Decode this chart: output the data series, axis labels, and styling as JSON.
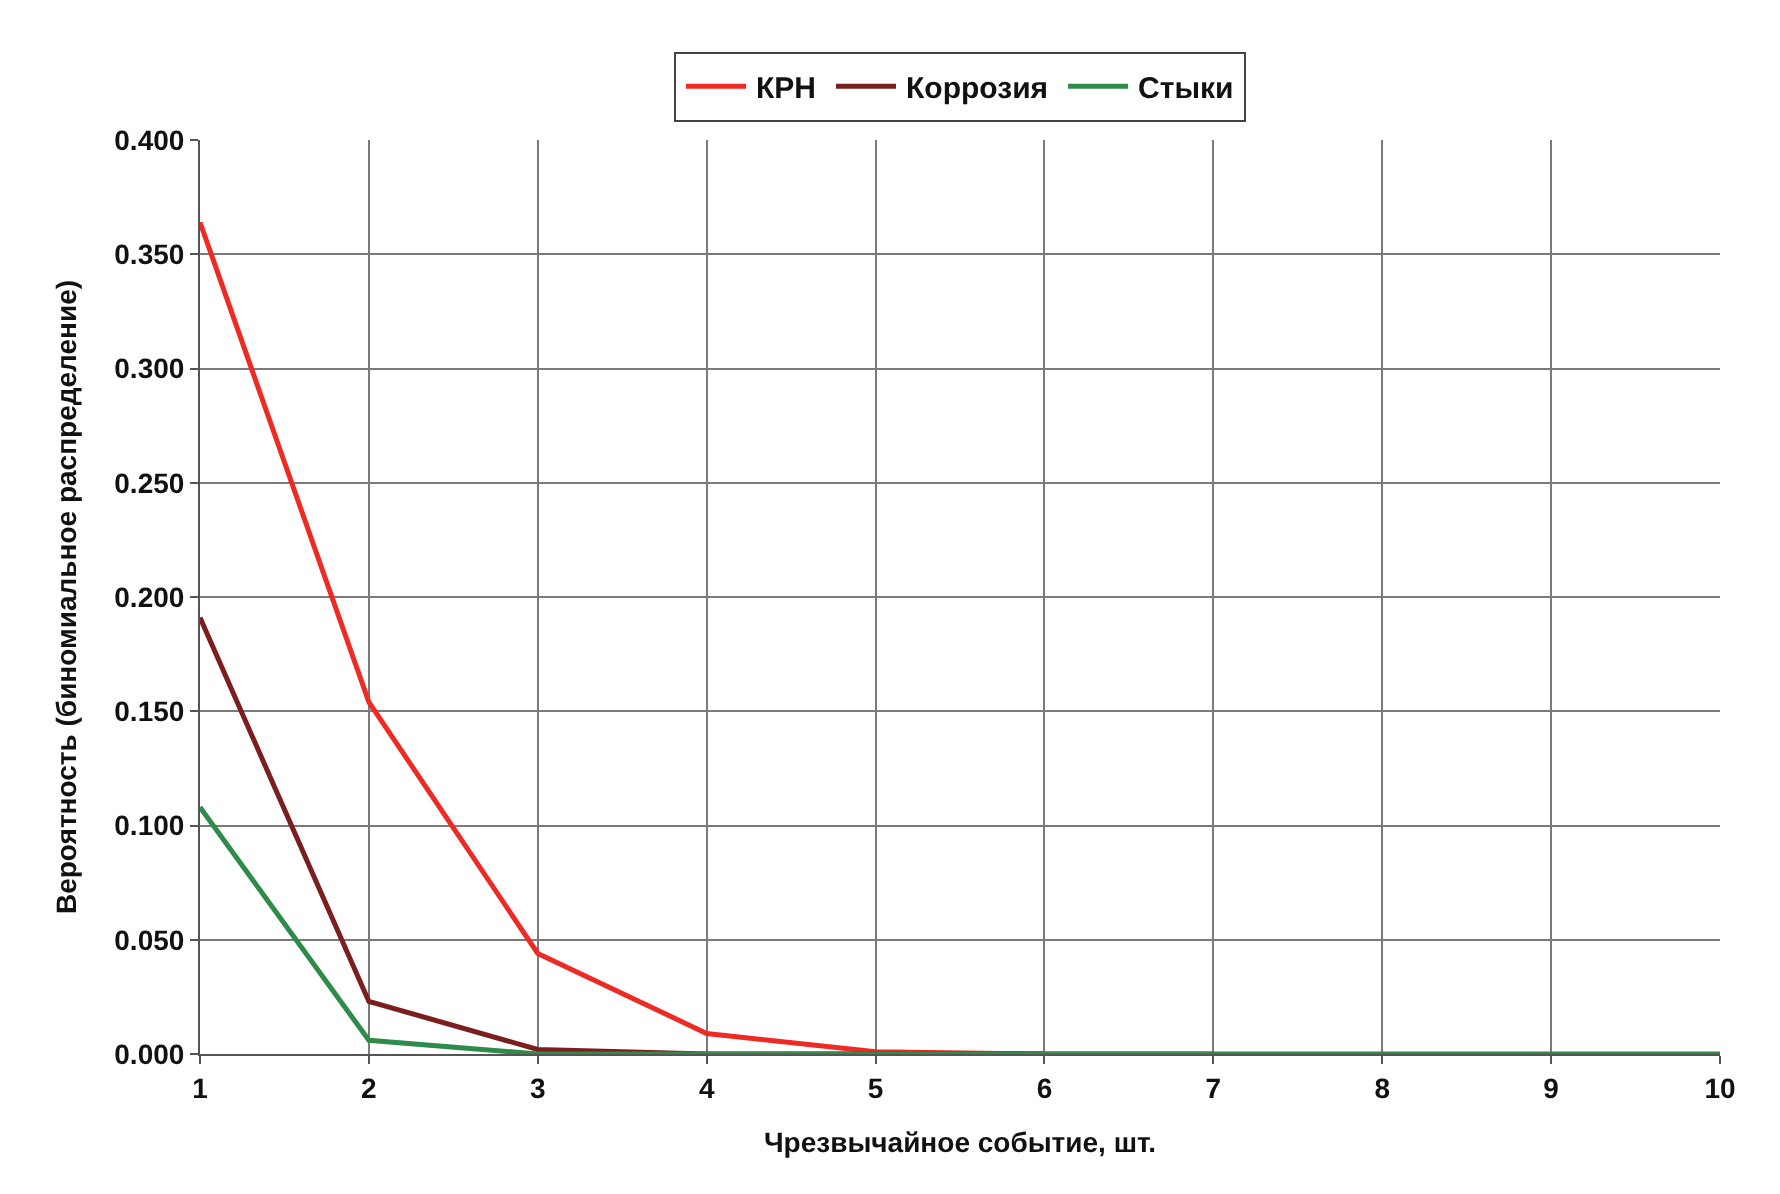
{
  "chart_data": {
    "type": "line",
    "xlabel": "Чрезвычайное событие, шт.",
    "ylabel": "Вероятность (биномиальное распределение)",
    "x": [
      1,
      2,
      3,
      4,
      5,
      6,
      7,
      8,
      9,
      10
    ],
    "series": [
      {
        "name": "КРН",
        "color": "#ee2a24",
        "values": [
          0.364,
          0.154,
          0.044,
          0.009,
          0.001,
          0,
          0,
          null,
          null,
          null
        ]
      },
      {
        "name": "Коррозия",
        "color": "#7b1e1e",
        "values": [
          0.191,
          0.023,
          0.002,
          0,
          0,
          0,
          null,
          null,
          null,
          null
        ]
      },
      {
        "name": "Стыки",
        "color": "#2e8b4a",
        "values": [
          0.108,
          0.006,
          0,
          0,
          0,
          0,
          0,
          0,
          0,
          0
        ]
      }
    ],
    "xlim": [
      1,
      10
    ],
    "xticks": [
      1,
      2,
      3,
      4,
      5,
      6,
      7,
      8,
      9,
      10
    ],
    "ylim": [
      0,
      0.4
    ],
    "yticks": [
      {
        "value": 0,
        "label": "0.000"
      },
      {
        "value": 0.05,
        "label": "0.050"
      },
      {
        "value": 0.1,
        "label": "0.100"
      },
      {
        "value": 0.15,
        "label": "0.150"
      },
      {
        "value": 0.2,
        "label": "0.200"
      },
      {
        "value": 0.25,
        "label": "0.250"
      },
      {
        "value": 0.3,
        "label": "0.300"
      },
      {
        "value": 0.35,
        "label": "0.350"
      },
      {
        "value": 0.4,
        "label": "0.400"
      }
    ],
    "grid": true,
    "legend": "top",
    "marker": "none",
    "line_style": "solid"
  }
}
